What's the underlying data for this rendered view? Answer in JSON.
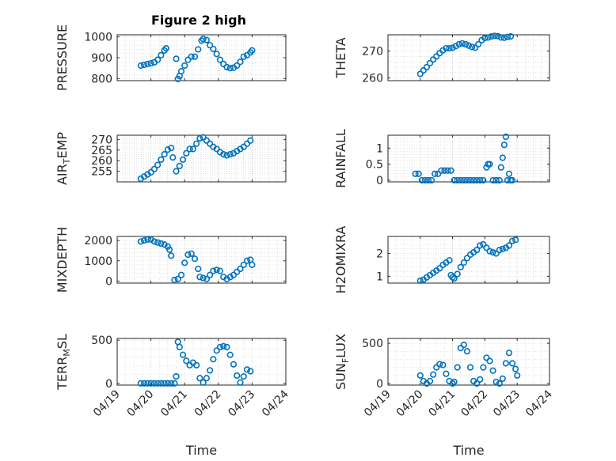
{
  "title": "Figure 2 high",
  "colors": {
    "marker": "#0072BD",
    "axis": "#262626",
    "grid": "#c8c8c8"
  },
  "chart_data": [
    {
      "type": "scatter",
      "ylabel": "PRESSURE",
      "ylim": [
        790,
        1010
      ],
      "yticks": [
        800,
        900,
        1000
      ],
      "ytick_labels": [
        "800",
        "900",
        "1000"
      ],
      "xlim": [
        0,
        5
      ],
      "grid": true,
      "points": [
        [
          0.7,
          862
        ],
        [
          0.8,
          866
        ],
        [
          0.9,
          870
        ],
        [
          1.0,
          873
        ],
        [
          1.1,
          878
        ],
        [
          1.2,
          890
        ],
        [
          1.3,
          912
        ],
        [
          1.4,
          935
        ],
        [
          1.45,
          945
        ],
        [
          1.75,
          895
        ],
        [
          1.8,
          798
        ],
        [
          1.85,
          812
        ],
        [
          1.9,
          835
        ],
        [
          2.0,
          862
        ],
        [
          2.1,
          890
        ],
        [
          2.2,
          905
        ],
        [
          2.3,
          905
        ],
        [
          2.4,
          940
        ],
        [
          2.5,
          982
        ],
        [
          2.55,
          990
        ],
        [
          2.65,
          985
        ],
        [
          2.75,
          960
        ],
        [
          2.85,
          942
        ],
        [
          2.95,
          918
        ],
        [
          3.05,
          890
        ],
        [
          3.15,
          870
        ],
        [
          3.25,
          855
        ],
        [
          3.35,
          850
        ],
        [
          3.45,
          852
        ],
        [
          3.55,
          862
        ],
        [
          3.65,
          880
        ],
        [
          3.75,
          905
        ],
        [
          3.85,
          912
        ],
        [
          3.95,
          925
        ],
        [
          4.0,
          935
        ]
      ]
    },
    {
      "type": "scatter",
      "ylabel": "THETA",
      "ylim": [
        259,
        276
      ],
      "yticks": [
        260,
        270
      ],
      "ytick_labels": [
        "260",
        "270"
      ],
      "xlim": [
        0,
        5
      ],
      "grid": true,
      "points": [
        [
          1.0,
          261.5
        ],
        [
          1.1,
          262.8
        ],
        [
          1.2,
          264
        ],
        [
          1.3,
          265.5
        ],
        [
          1.4,
          266.8
        ],
        [
          1.5,
          268
        ],
        [
          1.6,
          269.2
        ],
        [
          1.7,
          270.2
        ],
        [
          1.8,
          271
        ],
        [
          1.9,
          271
        ],
        [
          2.0,
          271.2
        ],
        [
          2.1,
          271.8
        ],
        [
          2.2,
          272.5
        ],
        [
          2.3,
          272.8
        ],
        [
          2.4,
          272.5
        ],
        [
          2.5,
          272
        ],
        [
          2.6,
          271.5
        ],
        [
          2.7,
          271.2
        ],
        [
          2.8,
          272.5
        ],
        [
          2.9,
          274
        ],
        [
          3.0,
          274.8
        ],
        [
          3.1,
          275
        ],
        [
          3.2,
          275.4
        ],
        [
          3.3,
          275.6
        ],
        [
          3.4,
          275.5
        ],
        [
          3.5,
          275
        ],
        [
          3.6,
          274.9
        ],
        [
          3.7,
          275.2
        ],
        [
          3.8,
          275.4
        ]
      ]
    },
    {
      "type": "scatter",
      "ylabel": "AIR_TEMP",
      "ylim": [
        250,
        272
      ],
      "yticks": [
        255,
        260,
        265,
        270
      ],
      "ytick_labels": [
        "255",
        "260",
        "265",
        "270"
      ],
      "xlim": [
        0,
        5
      ],
      "grid": true,
      "points": [
        [
          0.7,
          251.5
        ],
        [
          0.8,
          252.5
        ],
        [
          0.9,
          253.5
        ],
        [
          1.0,
          254.5
        ],
        [
          1.1,
          256
        ],
        [
          1.2,
          258
        ],
        [
          1.3,
          260.5
        ],
        [
          1.4,
          263
        ],
        [
          1.5,
          265.2
        ],
        [
          1.6,
          266
        ],
        [
          1.65,
          261.5
        ],
        [
          1.75,
          255
        ],
        [
          1.85,
          257.5
        ],
        [
          1.95,
          260.5
        ],
        [
          2.05,
          263.5
        ],
        [
          2.15,
          265.5
        ],
        [
          2.25,
          265.5
        ],
        [
          2.35,
          268
        ],
        [
          2.45,
          270.5
        ],
        [
          2.55,
          271
        ],
        [
          2.65,
          269.5
        ],
        [
          2.75,
          268
        ],
        [
          2.85,
          266.5
        ],
        [
          2.95,
          265.5
        ],
        [
          3.05,
          264
        ],
        [
          3.15,
          263
        ],
        [
          3.25,
          262.5
        ],
        [
          3.35,
          263
        ],
        [
          3.45,
          263.5
        ],
        [
          3.55,
          264.5
        ],
        [
          3.65,
          265.5
        ],
        [
          3.75,
          266.5
        ],
        [
          3.85,
          268
        ],
        [
          3.95,
          269.5
        ]
      ]
    },
    {
      "type": "scatter",
      "ylabel": "RAINFALL",
      "ylim": [
        -0.05,
        1.4
      ],
      "yticks": [
        0,
        0.5,
        1
      ],
      "ytick_labels": [
        "0",
        "0.5",
        "1"
      ],
      "xlim": [
        0,
        5
      ],
      "grid": true,
      "points": [
        [
          0.85,
          0.2
        ],
        [
          0.95,
          0.2
        ],
        [
          1.05,
          0
        ],
        [
          1.15,
          0
        ],
        [
          1.25,
          0
        ],
        [
          1.35,
          0
        ],
        [
          1.45,
          0.2
        ],
        [
          1.55,
          0.2
        ],
        [
          1.65,
          0.3
        ],
        [
          1.75,
          0.3
        ],
        [
          1.85,
          0.3
        ],
        [
          1.95,
          0.3
        ],
        [
          2.05,
          0
        ],
        [
          2.15,
          0
        ],
        [
          2.25,
          0
        ],
        [
          2.35,
          0
        ],
        [
          2.45,
          0
        ],
        [
          2.55,
          0
        ],
        [
          2.65,
          0
        ],
        [
          2.75,
          0
        ],
        [
          2.85,
          0
        ],
        [
          2.95,
          0
        ],
        [
          3.05,
          0.4
        ],
        [
          3.1,
          0.5
        ],
        [
          3.15,
          0.5
        ],
        [
          3.25,
          0
        ],
        [
          3.35,
          0
        ],
        [
          3.45,
          0
        ],
        [
          3.5,
          0.4
        ],
        [
          3.55,
          0.7
        ],
        [
          3.6,
          1.1
        ],
        [
          3.65,
          1.35
        ],
        [
          3.7,
          0
        ],
        [
          3.75,
          0.2
        ],
        [
          3.8,
          0
        ],
        [
          3.85,
          0
        ]
      ]
    },
    {
      "type": "scatter",
      "ylabel": "MIXDEPTH",
      "ylim": [
        -100,
        2200
      ],
      "yticks": [
        0,
        1000,
        2000
      ],
      "ytick_labels": [
        "0",
        "1000",
        "2000"
      ],
      "xlim": [
        0,
        5
      ],
      "grid": true,
      "points": [
        [
          0.7,
          1950
        ],
        [
          0.8,
          2000
        ],
        [
          0.9,
          2050
        ],
        [
          1.0,
          2050
        ],
        [
          1.1,
          1950
        ],
        [
          1.2,
          1900
        ],
        [
          1.3,
          1850
        ],
        [
          1.4,
          1800
        ],
        [
          1.5,
          1700
        ],
        [
          1.55,
          1550
        ],
        [
          1.6,
          1250
        ],
        [
          1.7,
          50
        ],
        [
          1.8,
          100
        ],
        [
          1.9,
          300
        ],
        [
          2.0,
          900
        ],
        [
          2.1,
          1300
        ],
        [
          2.2,
          1350
        ],
        [
          2.3,
          1100
        ],
        [
          2.4,
          600
        ],
        [
          2.45,
          200
        ],
        [
          2.55,
          150
        ],
        [
          2.65,
          100
        ],
        [
          2.75,
          300
        ],
        [
          2.85,
          500
        ],
        [
          2.95,
          550
        ],
        [
          3.05,
          500
        ],
        [
          3.15,
          200
        ],
        [
          3.25,
          100
        ],
        [
          3.35,
          200
        ],
        [
          3.45,
          300
        ],
        [
          3.55,
          450
        ],
        [
          3.65,
          600
        ],
        [
          3.75,
          800
        ],
        [
          3.85,
          1000
        ],
        [
          3.95,
          1050
        ],
        [
          4.0,
          800
        ]
      ]
    },
    {
      "type": "scatter",
      "ylabel": "H2OMIXRA",
      "ylim": [
        0.7,
        2.75
      ],
      "yticks": [
        1,
        2
      ],
      "ytick_labels": [
        "1",
        "2"
      ],
      "xlim": [
        0,
        5
      ],
      "grid": true,
      "points": [
        [
          1.0,
          0.8
        ],
        [
          1.1,
          0.85
        ],
        [
          1.2,
          0.95
        ],
        [
          1.3,
          1.05
        ],
        [
          1.4,
          1.15
        ],
        [
          1.5,
          1.25
        ],
        [
          1.6,
          1.35
        ],
        [
          1.7,
          1.5
        ],
        [
          1.8,
          1.6
        ],
        [
          1.9,
          1.7
        ],
        [
          1.95,
          1.05
        ],
        [
          2.0,
          0.95
        ],
        [
          2.05,
          0.9
        ],
        [
          2.15,
          1.1
        ],
        [
          2.25,
          1.4
        ],
        [
          2.35,
          1.6
        ],
        [
          2.45,
          1.8
        ],
        [
          2.55,
          1.95
        ],
        [
          2.65,
          2.05
        ],
        [
          2.75,
          2.15
        ],
        [
          2.85,
          2.35
        ],
        [
          2.95,
          2.4
        ],
        [
          3.05,
          2.25
        ],
        [
          3.15,
          2.1
        ],
        [
          3.25,
          2.05
        ],
        [
          3.35,
          2.0
        ],
        [
          3.45,
          2.15
        ],
        [
          3.55,
          2.2
        ],
        [
          3.65,
          2.25
        ],
        [
          3.75,
          2.35
        ],
        [
          3.85,
          2.55
        ],
        [
          3.95,
          2.6
        ]
      ]
    },
    {
      "type": "scatter",
      "ylabel": "TERR_MSL",
      "ylim": [
        -20,
        520
      ],
      "yticks": [
        0,
        500
      ],
      "ytick_labels": [
        "0",
        "500"
      ],
      "xlim": [
        0,
        5
      ],
      "grid": true,
      "points": [
        [
          0.7,
          0
        ],
        [
          0.8,
          0
        ],
        [
          0.9,
          0
        ],
        [
          1.0,
          0
        ],
        [
          1.1,
          0
        ],
        [
          1.2,
          0
        ],
        [
          1.3,
          0
        ],
        [
          1.4,
          0
        ],
        [
          1.5,
          0
        ],
        [
          1.6,
          0
        ],
        [
          1.7,
          0
        ],
        [
          1.75,
          80
        ],
        [
          1.8,
          480
        ],
        [
          1.85,
          420
        ],
        [
          1.95,
          330
        ],
        [
          2.05,
          260
        ],
        [
          2.15,
          210
        ],
        [
          2.25,
          240
        ],
        [
          2.35,
          210
        ],
        [
          2.45,
          60
        ],
        [
          2.55,
          10
        ],
        [
          2.65,
          60
        ],
        [
          2.75,
          150
        ],
        [
          2.85,
          280
        ],
        [
          2.95,
          380
        ],
        [
          3.05,
          420
        ],
        [
          3.15,
          430
        ],
        [
          3.25,
          420
        ],
        [
          3.35,
          330
        ],
        [
          3.45,
          220
        ],
        [
          3.55,
          90
        ],
        [
          3.65,
          10
        ],
        [
          3.75,
          80
        ],
        [
          3.85,
          160
        ],
        [
          3.95,
          140
        ]
      ]
    },
    {
      "type": "scatter",
      "ylabel": "SUN_FLUX",
      "ylim": [
        -20,
        560
      ],
      "yticks": [
        0,
        500
      ],
      "ytick_labels": [
        "0",
        "500"
      ],
      "xlim": [
        0,
        5
      ],
      "grid": true,
      "points": [
        [
          1.0,
          100
        ],
        [
          1.1,
          30
        ],
        [
          1.2,
          0
        ],
        [
          1.3,
          30
        ],
        [
          1.4,
          110
        ],
        [
          1.5,
          200
        ],
        [
          1.6,
          240
        ],
        [
          1.7,
          230
        ],
        [
          1.8,
          120
        ],
        [
          1.9,
          30
        ],
        [
          2.0,
          0
        ],
        [
          2.05,
          20
        ],
        [
          2.15,
          200
        ],
        [
          2.25,
          440
        ],
        [
          2.35,
          480
        ],
        [
          2.45,
          400
        ],
        [
          2.55,
          200
        ],
        [
          2.65,
          30
        ],
        [
          2.75,
          0
        ],
        [
          2.85,
          50
        ],
        [
          2.95,
          200
        ],
        [
          3.05,
          320
        ],
        [
          3.15,
          280
        ],
        [
          3.25,
          160
        ],
        [
          3.35,
          20
        ],
        [
          3.45,
          0
        ],
        [
          3.55,
          60
        ],
        [
          3.65,
          250
        ],
        [
          3.75,
          380
        ],
        [
          3.85,
          250
        ],
        [
          3.95,
          180
        ],
        [
          4.0,
          100
        ]
      ]
    }
  ],
  "x_axis": {
    "tick_labels": [
      "04/19",
      "04/20",
      "04/21",
      "04/22",
      "04/23",
      "04/24"
    ],
    "label": "Time"
  }
}
